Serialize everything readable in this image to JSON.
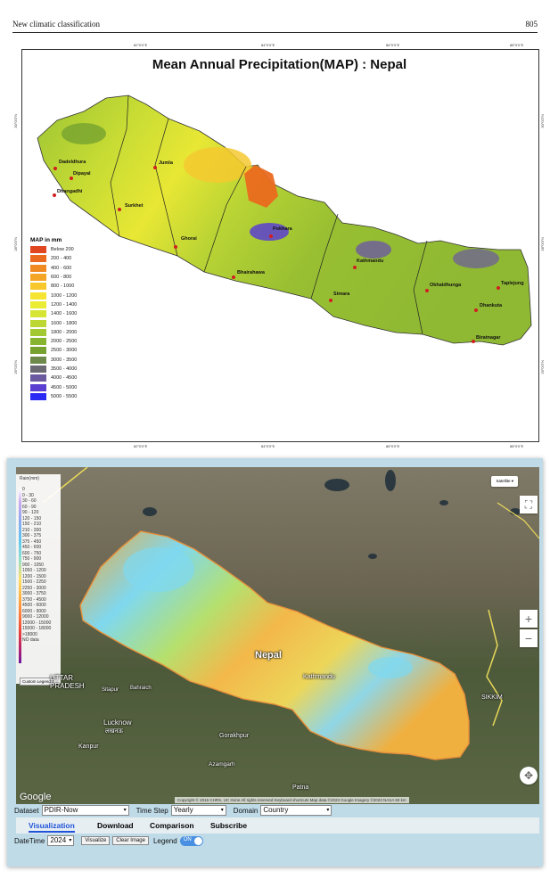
{
  "page": {
    "running_title": "New climatic classification",
    "page_number": "805"
  },
  "map1": {
    "title": "Mean Annual Precipitation(MAP) : Nepal",
    "lon_ticks": [
      "82°0'0\"E",
      "84°0'0\"E",
      "86°0'0\"E",
      "88°0'0\"E"
    ],
    "lat_ticks": [
      "30°0'0\"N",
      "28°0'0\"N",
      "26°0'0\"N"
    ],
    "legend_title": "MAP in mm",
    "legend": [
      {
        "label": "Below 200",
        "color": "#e0461f"
      },
      {
        "label": "200 - 400",
        "color": "#ea6a1f"
      },
      {
        "label": "400 - 600",
        "color": "#f08a22"
      },
      {
        "label": "600 - 800",
        "color": "#f5a526"
      },
      {
        "label": "800 - 1000",
        "color": "#f8c72c"
      },
      {
        "label": "1000 - 1200",
        "color": "#f5e532"
      },
      {
        "label": "1200 - 1400",
        "color": "#eaed34"
      },
      {
        "label": "1400 - 1600",
        "color": "#d6e534"
      },
      {
        "label": "1600 - 1800",
        "color": "#bcd733"
      },
      {
        "label": "1800 - 2000",
        "color": "#a2c832"
      },
      {
        "label": "2000 - 2500",
        "color": "#88b530"
      },
      {
        "label": "2500 - 3000",
        "color": "#76a230"
      },
      {
        "label": "3000 - 3500",
        "color": "#6d8a4b"
      },
      {
        "label": "3500 - 4000",
        "color": "#6b6a72"
      },
      {
        "label": "4000 - 4500",
        "color": "#6b5aa0"
      },
      {
        "label": "4500 - 5000",
        "color": "#5a3fd0"
      },
      {
        "label": "5000 - 5500",
        "color": "#2b2af5"
      }
    ],
    "cities": [
      {
        "name": "Dadeldhura"
      },
      {
        "name": "Dipayal"
      },
      {
        "name": "Dhangadhi"
      },
      {
        "name": "Jumla"
      },
      {
        "name": "Surkhet"
      },
      {
        "name": "Ghorai"
      },
      {
        "name": "Pokhara"
      },
      {
        "name": "Bhairahawa"
      },
      {
        "name": "Kathmandu"
      },
      {
        "name": "Simara"
      },
      {
        "name": "Okhaldhunga"
      },
      {
        "name": "Taplejung"
      },
      {
        "name": "Dhankuta"
      },
      {
        "name": "Biratnagar"
      }
    ]
  },
  "map2": {
    "legend_header": "Rain(mm)",
    "legend_items": [
      "0",
      "0 - 30",
      "30 - 60",
      "60 - 90",
      "90 - 120",
      "120 - 150",
      "150 - 210",
      "210 - 300",
      "300 - 375",
      "375 - 450",
      "450 - 600",
      "600 - 750",
      "750 - 900",
      "900 - 1050",
      "1050 - 1200",
      "1200 - 1500",
      "1500 - 2250",
      "2250 - 3000",
      "3000 - 3750",
      "3750 - 4500",
      "4500 - 6000",
      "6000 - 9000",
      "9000 - 12000",
      "12000 - 15000",
      "15000 - 18000",
      ">18000",
      "NO data"
    ],
    "custom_legend": "Custom Legend",
    "layer_button": "Satellite",
    "zoom_in": "+",
    "zoom_out": "−",
    "place_labels": {
      "nepal": "Nepal",
      "uttar_pradesh": "UTTAR\nPRADESH",
      "lucknow": "Lucknow",
      "lucknow_hi": "लखनऊ",
      "kathmandu": "Kathmandu",
      "sikkim": "SIKKIM",
      "patna": "Patna",
      "kanpur": "Kanpur",
      "gorakhpur": "Gorakhpur",
      "bahraich": "Bahraich",
      "sitapur": "Sitapur",
      "azamgarh": "Azamgarh"
    },
    "google": "Google",
    "attribution": "Copyright © 2016 CHRS, UC Irvine  All rights reserved   Keyboard shortcuts   Map data ©2023 Google Imagery ©2023 NASA   50 km"
  },
  "controls": {
    "dataset_label": "Dataset",
    "dataset_value": "PDIR-Now",
    "timestep_label": "Time Step",
    "timestep_value": "Yearly",
    "domain_label": "Domain",
    "domain_value": "Country",
    "tabs": [
      "Visualization",
      "Download",
      "Comparison",
      "Subscribe"
    ],
    "datetime_label": "DateTime",
    "datetime_value": "2024",
    "visualize": "Visualize",
    "clear_image": "Clear Image",
    "legend_label": "Legend",
    "legend_toggle": "ON"
  }
}
